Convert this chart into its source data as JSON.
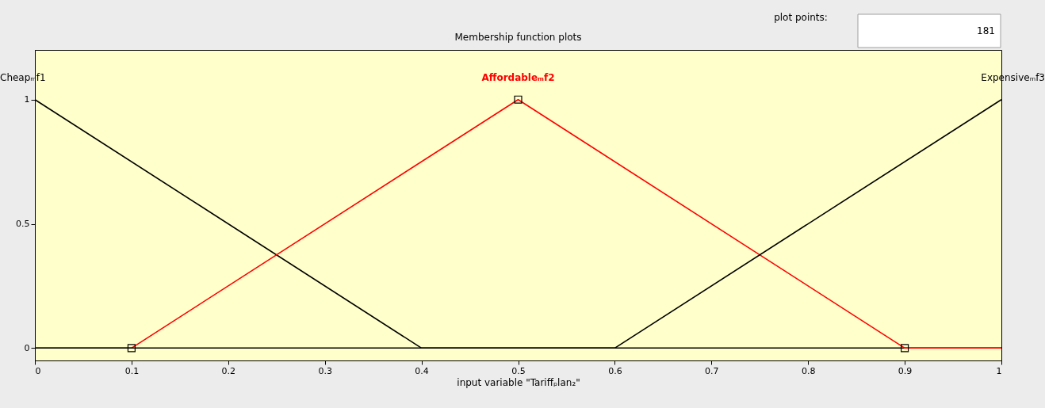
{
  "chart_data": {
    "type": "line",
    "title": "Membership function plots",
    "xlabel": "input variable \"Tariffₚlan₂\"",
    "annotations": [
      "plot points:",
      "181"
    ],
    "xlim": [
      0,
      1
    ],
    "ylim": [
      -0.05,
      1.2
    ],
    "xticks": [
      0,
      0.1,
      0.2,
      0.3,
      0.4,
      0.5,
      0.6,
      0.7,
      0.8,
      0.9,
      1
    ],
    "yticks": [
      0,
      0.5,
      1
    ],
    "grid": false,
    "series": [
      {
        "name": "Cheapₘf1",
        "color": "#000000",
        "x": [
          0,
          0.4,
          1
        ],
        "values": [
          1,
          0,
          0
        ]
      },
      {
        "name": "Affordableₘf2",
        "color": "#ff0000",
        "x": [
          0,
          0.1,
          0.5,
          0.9,
          1
        ],
        "values": [
          0,
          0,
          1,
          0,
          0
        ]
      },
      {
        "name": "Expensiveₘf3",
        "color": "#000000",
        "x": [
          0,
          0.6,
          1
        ],
        "values": [
          0,
          0,
          1
        ]
      },
      {
        "type": "scatter",
        "marker": "square",
        "color": "#000000",
        "x": [
          0.1,
          0.5,
          0.9
        ],
        "values": [
          0,
          1,
          0
        ]
      }
    ]
  }
}
